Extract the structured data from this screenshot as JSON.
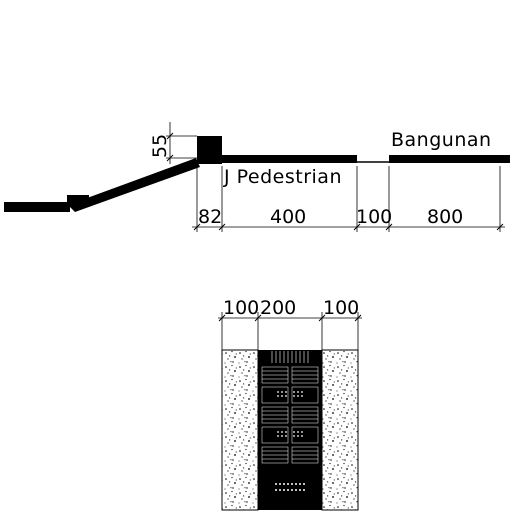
{
  "section_profile": {
    "labels": {
      "pedestrian": "J Pedestrian",
      "building": "Bangunan"
    },
    "dimensions": {
      "curb_height": "55",
      "curb_width": "82",
      "pedestrian_width": "400",
      "gap_width": "100",
      "building_width": "800"
    }
  },
  "paving_plan": {
    "dimensions": {
      "left_strip": "100",
      "tactile_strip": "200",
      "right_strip": "100"
    }
  },
  "colors": {
    "line": "#000000",
    "background": "#ffffff"
  }
}
